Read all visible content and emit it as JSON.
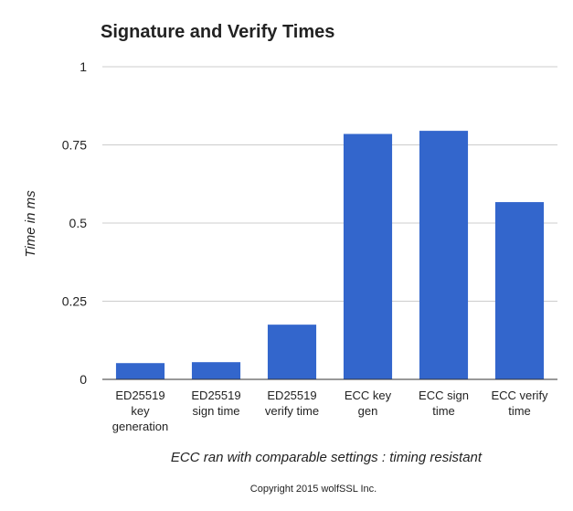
{
  "chart_data": {
    "type": "bar",
    "title": "Signature and Verify Times",
    "ylabel": "Time in ms",
    "xlabel": "ECC ran with comparable settings : timing resistant",
    "footer": "Copyright 2015 wolfSSL Inc.",
    "ylim": [
      0,
      1
    ],
    "yticks": [
      "0",
      "0.25",
      "0.5",
      "0.75",
      "1"
    ],
    "yticks_values": [
      0,
      0.25,
      0.5,
      0.75,
      1
    ],
    "grid": true,
    "legend": "none",
    "bar_color": "#3366cc",
    "categories": [
      [
        "ED25519",
        "key",
        "generation"
      ],
      [
        "ED25519",
        "sign time"
      ],
      [
        "ED25519",
        "verify time"
      ],
      [
        "ECC key",
        "gen"
      ],
      [
        "ECC sign",
        "time"
      ],
      [
        "ECC verify",
        "time"
      ]
    ],
    "values": [
      0.052,
      0.055,
      0.175,
      0.785,
      0.795,
      0.567
    ]
  }
}
